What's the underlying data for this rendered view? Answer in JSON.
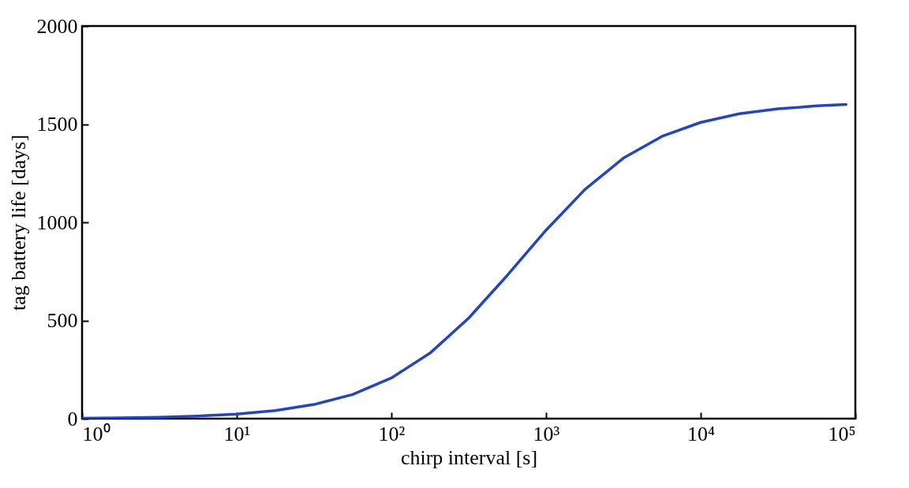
{
  "chart_data": {
    "type": "line",
    "xlabel": "chirp interval [s]",
    "ylabel": "tag battery life [days]",
    "log": "x",
    "grid": false,
    "marker": "none",
    "line_style": "solid",
    "xlim": [
      1,
      100000
    ],
    "ylim": [
      0,
      2000
    ],
    "xticks": [
      {
        "value": 1,
        "label": "10⁰"
      },
      {
        "value": 10,
        "label": "10¹"
      },
      {
        "value": 100,
        "label": "10²"
      },
      {
        "value": 1000,
        "label": "10³"
      },
      {
        "value": 10000,
        "label": "10⁴"
      },
      {
        "value": 100000,
        "label": "10⁵"
      }
    ],
    "yticks": [
      0,
      500,
      1000,
      1500,
      2000
    ],
    "x": [
      1,
      1.78,
      3.16,
      5.62,
      10,
      17.8,
      31.6,
      56.2,
      100,
      178,
      316,
      562,
      1000,
      1778,
      3162,
      5623,
      10000,
      17783,
      31623,
      56234,
      87000
    ],
    "series": [
      {
        "color": "#2244c8",
        "values": [
          2,
          4,
          7,
          13,
          23,
          41,
          72,
          123,
          207,
          334,
          512,
          730,
          960,
          1166,
          1327,
          1438,
          1509,
          1553,
          1578,
          1593,
          1600
        ]
      }
    ]
  }
}
